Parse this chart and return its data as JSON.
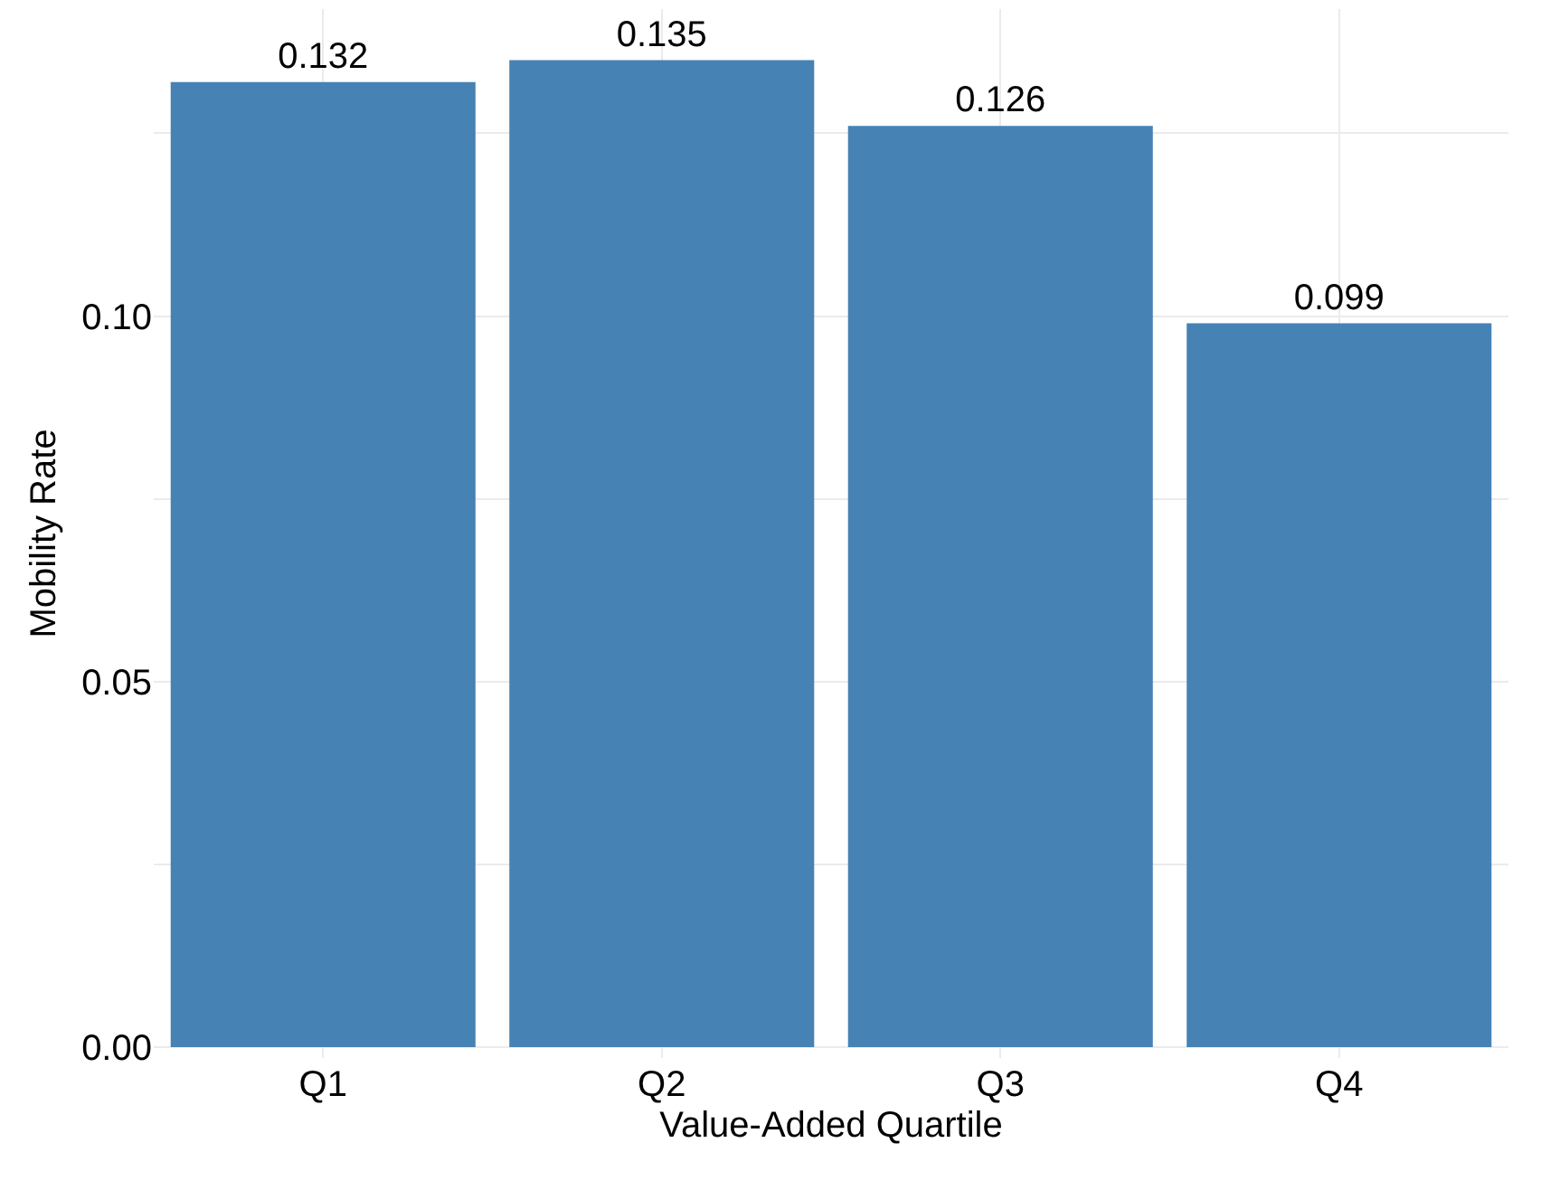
{
  "chart_data": {
    "type": "bar",
    "xlabel": "Value-Added Quartile",
    "ylabel": "Mobility Rate",
    "categories": [
      "Q1",
      "Q2",
      "Q3",
      "Q4"
    ],
    "values": [
      0.132,
      0.135,
      0.126,
      0.099
    ],
    "color": "#4682b4",
    "data_labels": true,
    "grid": true,
    "ylim": [
      -0.0015,
      0.142
    ],
    "yticks": [
      {
        "value": 0,
        "label": "0.00"
      },
      {
        "value": 0.025,
        "label": null
      },
      {
        "value": 0.05,
        "label": "0.05"
      },
      {
        "value": 0.075,
        "label": null
      },
      {
        "value": 0.1,
        "label": "0.10"
      },
      {
        "value": 0.125,
        "label": null
      }
    ]
  }
}
